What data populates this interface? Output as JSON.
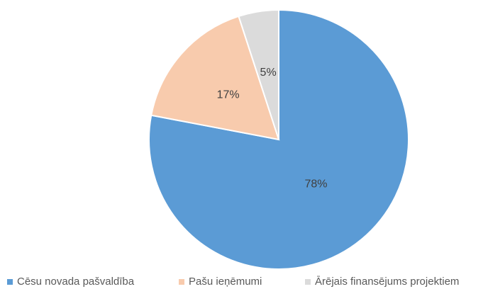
{
  "chart_data": {
    "type": "pie",
    "categories": [
      "Cēsu novada pašvaldība",
      "Pašu ieņēmumi",
      "Ārējais finansējums projektiem"
    ],
    "values": [
      78,
      17,
      5
    ],
    "value_labels": [
      "78%",
      "17%",
      "5%"
    ],
    "colors": [
      "#5b9bd5",
      "#f8cbad",
      "#dbdbdb"
    ],
    "legend": "bottom"
  }
}
